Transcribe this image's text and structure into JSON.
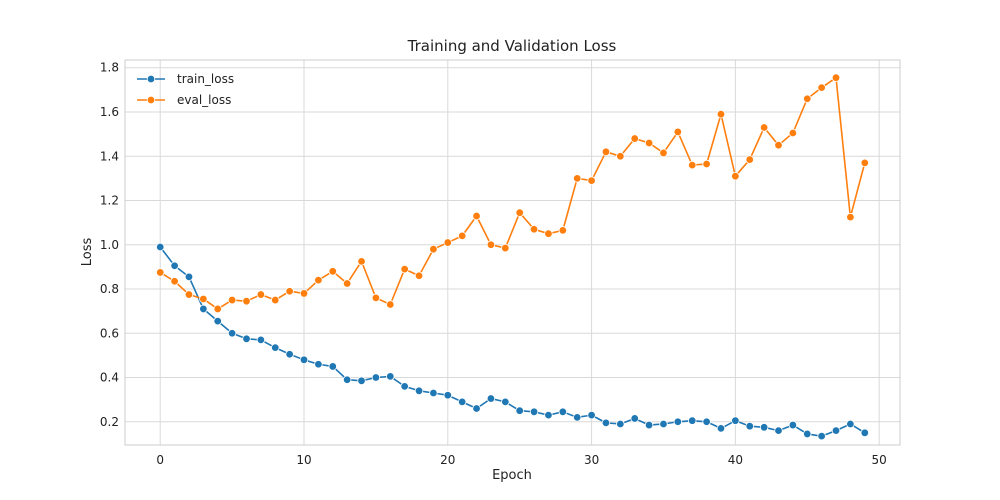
{
  "chart_data": {
    "type": "line",
    "title": "Training and Validation Loss",
    "xlabel": "Epoch",
    "ylabel": "Loss",
    "xlim": [
      -2.45,
      51.45
    ],
    "ylim": [
      0.095,
      1.835
    ],
    "xticks": [
      0,
      10,
      20,
      30,
      40,
      50
    ],
    "yticks": [
      0.2,
      0.4,
      0.6,
      0.8,
      1.0,
      1.2,
      1.4,
      1.6,
      1.8
    ],
    "xtick_labels": [
      "0",
      "10",
      "20",
      "30",
      "40",
      "50"
    ],
    "ytick_labels": [
      "0.2",
      "0.4",
      "0.6",
      "0.8",
      "1.0",
      "1.2",
      "1.4",
      "1.6",
      "1.8"
    ],
    "grid": true,
    "legend_position": "top-left",
    "x": [
      0,
      1,
      2,
      3,
      4,
      5,
      6,
      7,
      8,
      9,
      10,
      11,
      12,
      13,
      14,
      15,
      16,
      17,
      18,
      19,
      20,
      21,
      22,
      23,
      24,
      25,
      26,
      27,
      28,
      29,
      30,
      31,
      32,
      33,
      34,
      35,
      36,
      37,
      38,
      39,
      40,
      41,
      42,
      43,
      44,
      45,
      46,
      47,
      48,
      49
    ],
    "series": [
      {
        "name": "train_loss",
        "color": "#1f77b4",
        "values": [
          0.99,
          0.905,
          0.855,
          0.71,
          0.655,
          0.6,
          0.575,
          0.57,
          0.535,
          0.505,
          0.48,
          0.46,
          0.45,
          0.39,
          0.385,
          0.4,
          0.405,
          0.36,
          0.34,
          0.33,
          0.32,
          0.29,
          0.26,
          0.305,
          0.29,
          0.25,
          0.245,
          0.23,
          0.245,
          0.22,
          0.23,
          0.195,
          0.19,
          0.215,
          0.185,
          0.19,
          0.2,
          0.205,
          0.2,
          0.17,
          0.205,
          0.18,
          0.175,
          0.16,
          0.185,
          0.145,
          0.135,
          0.16,
          0.19,
          0.15
        ]
      },
      {
        "name": "eval_loss",
        "color": "#ff7f0e",
        "values": [
          0.875,
          0.835,
          0.775,
          0.755,
          0.71,
          0.75,
          0.745,
          0.775,
          0.75,
          0.79,
          0.78,
          0.84,
          0.88,
          0.825,
          0.925,
          0.76,
          0.73,
          0.89,
          0.86,
          0.98,
          1.01,
          1.04,
          1.13,
          1.0,
          0.985,
          1.145,
          1.07,
          1.05,
          1.065,
          1.3,
          1.29,
          1.42,
          1.4,
          1.48,
          1.46,
          1.415,
          1.51,
          1.36,
          1.365,
          1.59,
          1.31,
          1.385,
          1.53,
          1.45,
          1.505,
          1.66,
          1.71,
          1.755,
          1.125,
          1.37
        ]
      }
    ]
  }
}
